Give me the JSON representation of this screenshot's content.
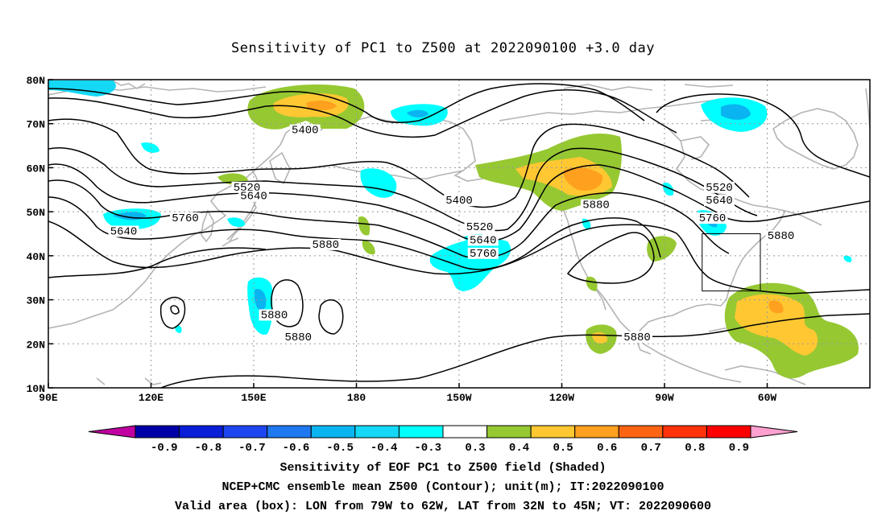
{
  "title": "Sensitivity of PC1 to Z500 at 2022090100 +3.0 day",
  "map": {
    "lat_labels": [
      "80N",
      "70N",
      "60N",
      "50N",
      "40N",
      "30N",
      "20N",
      "10N"
    ],
    "lon_labels": [
      "90E",
      "120E",
      "150E",
      "180",
      "150W",
      "120W",
      "90W",
      "60W"
    ],
    "contour_labels": [
      {
        "text": "5400",
        "lon": 165,
        "lat": 68
      },
      {
        "text": "5400",
        "lon": -150,
        "lat": 52
      },
      {
        "text": "5520",
        "lon": 148,
        "lat": 55
      },
      {
        "text": "5640",
        "lon": 150,
        "lat": 53
      },
      {
        "text": "5760",
        "lon": 130,
        "lat": 48
      },
      {
        "text": "5640",
        "lon": 112,
        "lat": 45
      },
      {
        "text": "5880",
        "lon": 171,
        "lat": 42
      },
      {
        "text": "5520",
        "lon": -144,
        "lat": 46
      },
      {
        "text": "5640",
        "lon": -143,
        "lat": 43
      },
      {
        "text": "5760",
        "lon": -143,
        "lat": 40
      },
      {
        "text": "5880",
        "lon": -110,
        "lat": 51
      },
      {
        "text": "5520",
        "lon": -74,
        "lat": 55
      },
      {
        "text": "5640",
        "lon": -74,
        "lat": 52
      },
      {
        "text": "5760",
        "lon": -76,
        "lat": 48
      },
      {
        "text": "5880",
        "lon": -56,
        "lat": 44
      },
      {
        "text": "5880",
        "lon": 156,
        "lat": 26
      },
      {
        "text": "5880",
        "lon": 163,
        "lat": 21
      },
      {
        "text": "5880",
        "lon": -98,
        "lat": 21
      }
    ],
    "valid_box": {
      "lon_w": -79,
      "lon_e": -62,
      "lat_s": 32,
      "lat_n": 45
    }
  },
  "colorbar": {
    "levels": [
      "-0.9",
      "-0.8",
      "-0.7",
      "-0.6",
      "-0.5",
      "-0.4",
      "-0.3",
      "0.3",
      "0.4",
      "0.5",
      "0.6",
      "0.7",
      "0.8",
      "0.9"
    ],
    "colors": [
      "#0000a8",
      "#0a1ed8",
      "#1e46f0",
      "#1e78f0",
      "#0ab4f0",
      "#14d8f5",
      "#00ffff",
      "#ffffff",
      "#96c832",
      "#ffc832",
      "#ffa01e",
      "#ff6414",
      "#ff320a",
      "#ff0000"
    ],
    "low_tip_color": "#c000a0",
    "high_tip_color": "#ffa0d0"
  },
  "footer": {
    "line1": "Sensitivity of EOF PC1 to Z500 field (Shaded)",
    "line2": "NCEP+CMC ensemble mean Z500 (Contour); unit(m); IT:2022090100",
    "line3": "Valid area (box): LON from 79W to 62W, LAT from 32N to 45N; VT: 2022090600"
  }
}
